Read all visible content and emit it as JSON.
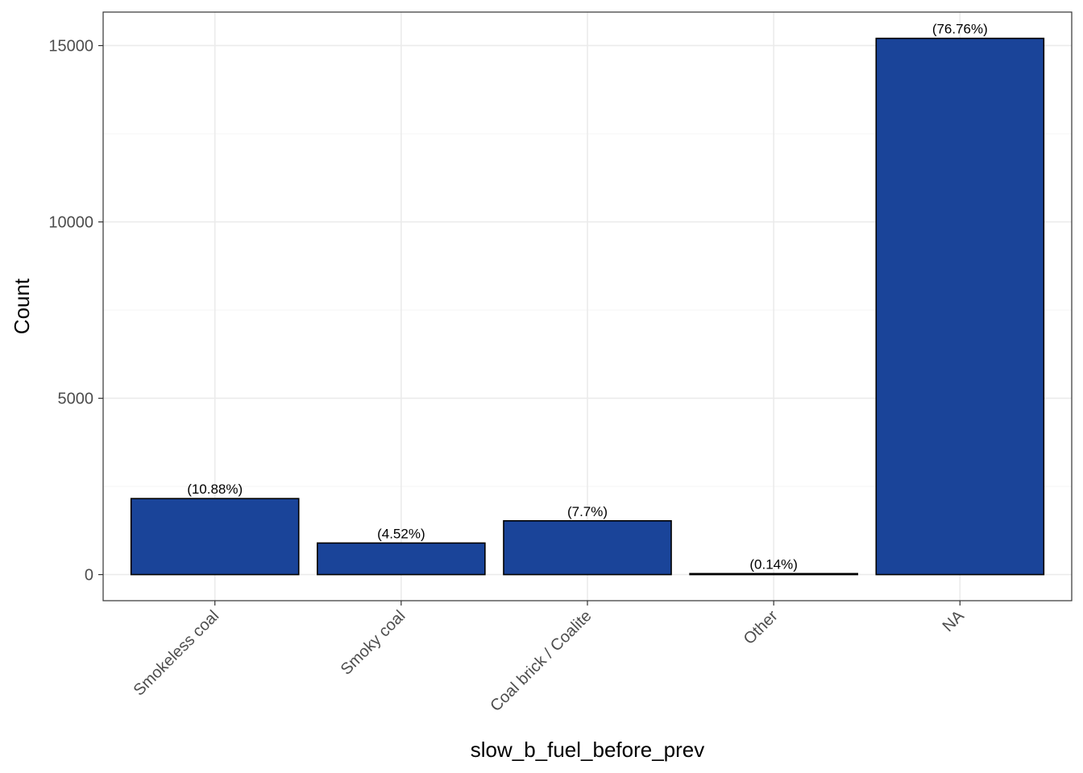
{
  "chart_data": {
    "type": "bar",
    "xlabel": "slow_b_fuel_before_prev",
    "ylabel": "Count",
    "categories": [
      "Smokeless coal",
      "Smoky coal",
      "Coal brick / Coalite",
      "Other",
      "NA"
    ],
    "values": [
      2155,
      895,
      1525,
      28,
      15205
    ],
    "bar_labels": [
      "(10.88%)",
      "(4.52%)",
      "(7.7%)",
      "(0.14%)",
      "(76.76%)"
    ],
    "yticks": [
      0,
      5000,
      10000,
      15000
    ],
    "ytick_labels": [
      "0",
      "5000",
      "10000",
      "15000"
    ],
    "ylim": [
      -740,
      15950
    ],
    "grid": true,
    "legend": "none",
    "colors": {
      "bar_fill": "#1A4499",
      "bar_stroke": "#000000",
      "grid_major": "#EBEBEB",
      "grid_minor": "#F5F5F5",
      "panel_border": "#333333"
    }
  }
}
